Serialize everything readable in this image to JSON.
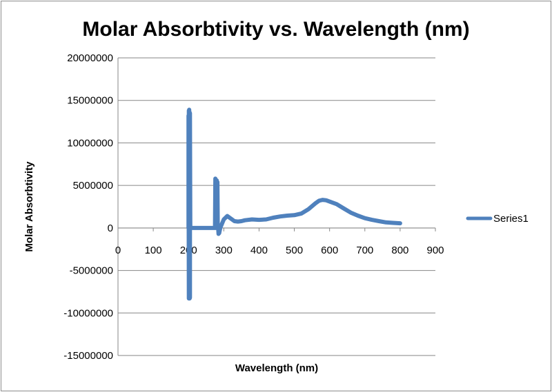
{
  "chart_data": {
    "type": "line",
    "title": "Molar Absorbtivity vs. Wavelength (nm)",
    "xlabel": "Wavelength (nm)",
    "ylabel": "Molar Absorbtivity",
    "xlim": [
      0,
      900
    ],
    "ylim": [
      -15000000,
      20000000
    ],
    "x_ticks": [
      0,
      100,
      200,
      300,
      400,
      500,
      600,
      700,
      800,
      900
    ],
    "y_ticks": [
      20000000,
      15000000,
      10000000,
      5000000,
      0,
      -5000000,
      -10000000,
      -15000000
    ],
    "x_tick_labels": [
      "0",
      "100",
      "200",
      "300",
      "400",
      "500",
      "600",
      "700",
      "800",
      "900"
    ],
    "y_tick_labels": [
      "20000000",
      "15000000",
      "10000000",
      "5000000",
      "0",
      "-5000000",
      "-10000000",
      "-15000000"
    ],
    "grid": true,
    "legend_position": "right",
    "color": "#4f81bd",
    "series": [
      {
        "name": "Series1",
        "x": [
          200,
          200,
          201,
          201,
          202,
          202,
          203,
          203,
          204,
          204,
          205,
          206,
          220,
          250,
          275,
          276,
          277,
          278,
          279,
          280,
          281,
          282,
          283,
          284,
          285,
          286,
          287,
          290,
          300,
          310,
          320,
          330,
          340,
          350,
          360,
          380,
          400,
          420,
          440,
          460,
          480,
          500,
          520,
          540,
          560,
          570,
          580,
          590,
          600,
          620,
          640,
          660,
          680,
          700,
          720,
          740,
          760,
          780,
          800
        ],
        "y": [
          0,
          13200000,
          -8300000,
          13800000,
          -8200000,
          13900000,
          -8300000,
          13600000,
          -8200000,
          13500000,
          0,
          0,
          0,
          0,
          0,
          5800000,
          0,
          5500000,
          0,
          5600000,
          0,
          5400000,
          0,
          0,
          -700000,
          300000,
          -600000,
          0,
          1000000,
          1400000,
          1100000,
          800000,
          750000,
          800000,
          900000,
          1000000,
          950000,
          1000000,
          1200000,
          1350000,
          1450000,
          1500000,
          1700000,
          2200000,
          2900000,
          3200000,
          3300000,
          3250000,
          3100000,
          2800000,
          2300000,
          1800000,
          1450000,
          1150000,
          950000,
          800000,
          650000,
          600000,
          550000
        ]
      }
    ]
  }
}
